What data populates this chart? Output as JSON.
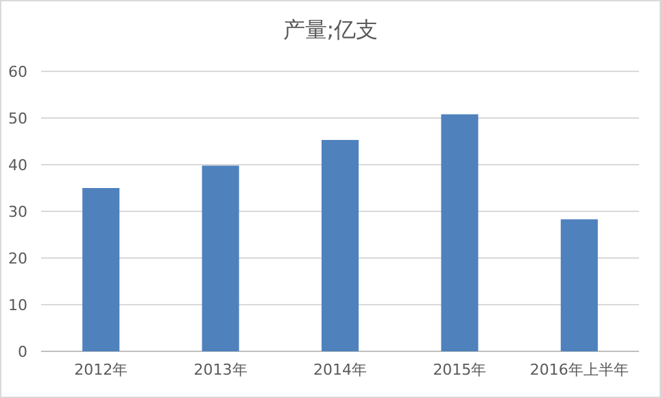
{
  "chart_data": {
    "type": "bar",
    "title": "产量;亿支",
    "categories": [
      "2012年",
      "2013年",
      "2014年",
      "2015年",
      "2016年上半年"
    ],
    "values": [
      35,
      39.8,
      45.3,
      50.8,
      28.3
    ],
    "color": "#4f81bd",
    "ylim": [
      0,
      60
    ],
    "yticks": [
      0,
      10,
      20,
      30,
      40,
      50,
      60
    ],
    "grid": "y"
  }
}
